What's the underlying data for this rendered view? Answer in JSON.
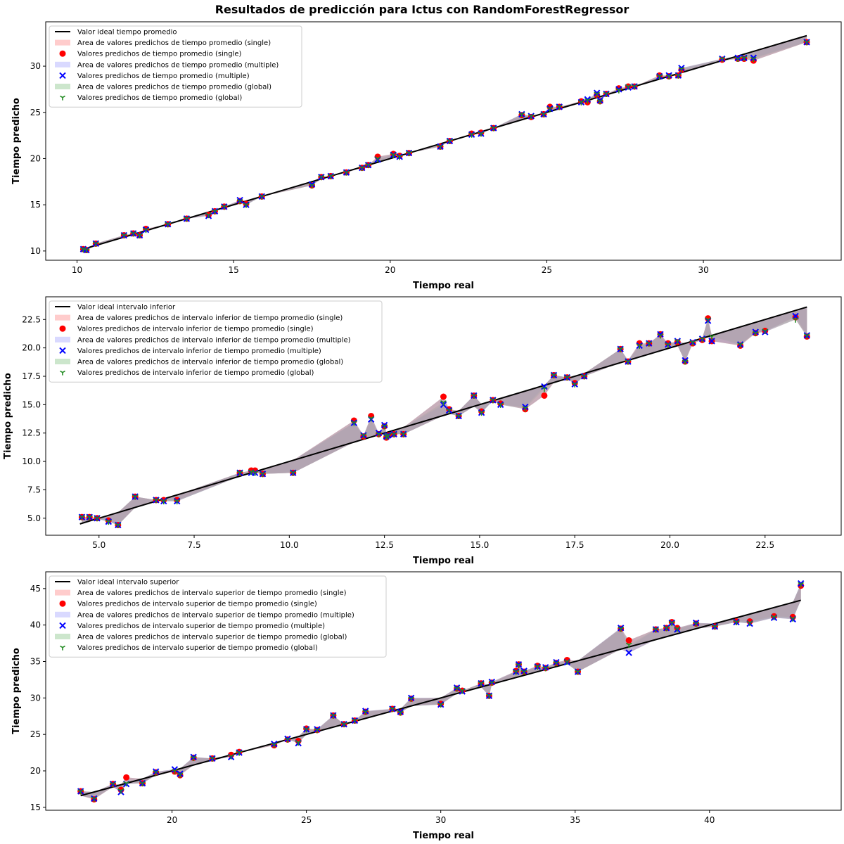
{
  "figure_title": "Resultados de predicción para Ictus con RandomForestRegressor",
  "colors": {
    "ideal": "#000000",
    "single": "#ff0000",
    "multiple": "#0000ff",
    "global": "#228b22",
    "band_single": "rgba(255,0,0,0.2)",
    "band_multiple": "rgba(0,0,255,0.15)",
    "band_global": "rgba(0,128,0,0.2)",
    "band_overlap": "#b5a5b5"
  },
  "chart_data": [
    {
      "type": "scatter",
      "xlabel": "Tiempo real",
      "ylabel": "Tiempo predicho",
      "xlim": [
        9.0,
        34.4
      ],
      "ylim": [
        9.0,
        34.8
      ],
      "xticks": [
        10,
        15,
        20,
        25,
        30
      ],
      "yticks": [
        10,
        15,
        20,
        25,
        30
      ],
      "ytick_format": 0,
      "legend_position": "upper left",
      "legend": [
        "Valor ideal tiempo promedio",
        "Area de valores predichos de tiempo promedio (single)",
        "Valores predichos de tiempo promedio (single)",
        "Area de valores predichos de tiempo promedio (multiple)",
        "Valores predichos de tiempo promedio (multiple)",
        "Area de valores predichos de tiempo promedio (global)",
        "Valores predichos de tiempo promedio (global)"
      ],
      "ideal_line": {
        "x": [
          10.2,
          33.3
        ],
        "y": [
          10.2,
          33.3
        ]
      },
      "x": [
        10.2,
        10.3,
        10.6,
        11.5,
        11.8,
        12.0,
        12.2,
        12.9,
        13.5,
        14.2,
        14.4,
        14.7,
        15.2,
        15.4,
        15.9,
        17.5,
        17.8,
        18.1,
        18.6,
        19.1,
        19.3,
        19.6,
        20.1,
        20.3,
        20.6,
        21.6,
        21.9,
        22.6,
        22.9,
        23.3,
        24.2,
        24.5,
        24.9,
        25.1,
        25.4,
        26.1,
        26.3,
        26.6,
        26.7,
        26.9,
        27.3,
        27.6,
        27.8,
        28.6,
        28.9,
        29.2,
        29.3,
        30.6,
        31.1,
        31.3,
        31.6,
        33.3
      ],
      "series": [
        {
          "name": "single",
          "values": [
            10.2,
            10.1,
            10.8,
            11.7,
            11.9,
            11.7,
            12.4,
            12.9,
            13.5,
            13.9,
            14.3,
            14.8,
            15.4,
            15.1,
            15.9,
            17.1,
            18.0,
            18.1,
            18.5,
            19.0,
            19.3,
            20.2,
            20.5,
            20.3,
            20.6,
            21.3,
            21.9,
            22.7,
            22.8,
            23.3,
            24.7,
            24.5,
            24.8,
            25.6,
            25.6,
            26.2,
            26.1,
            26.9,
            26.2,
            27.0,
            27.6,
            27.8,
            27.8,
            29.0,
            28.9,
            29.0,
            29.6,
            30.7,
            30.8,
            30.8,
            30.6,
            32.6
          ]
        },
        {
          "name": "multiple",
          "values": [
            10.2,
            10.1,
            10.8,
            11.7,
            11.9,
            11.7,
            12.3,
            12.9,
            13.5,
            13.8,
            14.3,
            14.8,
            15.5,
            15.0,
            15.9,
            17.2,
            18.0,
            18.1,
            18.5,
            19.0,
            19.3,
            19.9,
            20.4,
            20.2,
            20.6,
            21.3,
            21.9,
            22.6,
            22.7,
            23.3,
            24.8,
            24.6,
            24.8,
            25.4,
            25.6,
            26.1,
            26.4,
            27.1,
            26.3,
            27.0,
            27.5,
            27.7,
            27.8,
            28.9,
            29.0,
            29.0,
            29.8,
            30.8,
            30.9,
            30.9,
            30.9,
            32.6
          ]
        },
        {
          "name": "global",
          "values": [
            10.2,
            10.1,
            10.8,
            11.7,
            11.9,
            11.7,
            12.3,
            12.9,
            13.5,
            13.9,
            14.3,
            14.8,
            15.4,
            15.0,
            15.9,
            17.1,
            18.0,
            18.1,
            18.5,
            19.0,
            19.3,
            20.0,
            20.4,
            20.2,
            20.6,
            21.3,
            21.9,
            22.6,
            22.7,
            23.3,
            24.8,
            24.6,
            24.8,
            25.4,
            25.6,
            26.1,
            26.3,
            27.0,
            26.2,
            27.0,
            27.4,
            27.8,
            27.8,
            28.9,
            28.9,
            29.0,
            29.7,
            30.8,
            30.8,
            30.9,
            30.8,
            32.6
          ]
        }
      ]
    },
    {
      "type": "scatter",
      "xlabel": "Tiempo real",
      "ylabel": "Tiempo predicho",
      "xlim": [
        3.6,
        24.5
      ],
      "ylim": [
        3.5,
        24.5
      ],
      "xticks": [
        5.0,
        7.5,
        10.0,
        12.5,
        15.0,
        17.5,
        20.0,
        22.5
      ],
      "yticks": [
        5.0,
        7.5,
        10.0,
        12.5,
        15.0,
        17.5,
        20.0,
        22.5
      ],
      "ytick_format": 1,
      "legend_position": "upper left",
      "legend": [
        "Valor ideal intervalo inferior",
        "Area de valores predichos de intervalo inferior de tiempo promedio (single)",
        "Valores predichos de intervalo inferior de tiempo promedio (single)",
        "Area de valores predichos de intervalo inferior de tiempo promedio (multiple)",
        "Valores predichos de intervalo inferior de tiempo promedio (multiple)",
        "Area de valores predichos de intervalo inferior de tiempo promedio (global)",
        "Valores predichos de intervalo inferior de tiempo promedio (global)"
      ],
      "ideal_line": {
        "x": [
          4.5,
          23.6
        ],
        "y": [
          4.5,
          23.6
        ]
      },
      "x": [
        4.55,
        4.75,
        4.95,
        5.25,
        5.5,
        5.95,
        6.5,
        6.7,
        7.05,
        8.7,
        9.0,
        9.1,
        9.3,
        10.1,
        11.7,
        11.95,
        12.15,
        12.35,
        12.5,
        12.55,
        12.6,
        12.75,
        13.0,
        14.05,
        14.2,
        14.45,
        14.85,
        15.05,
        15.35,
        15.55,
        16.2,
        16.7,
        16.95,
        17.3,
        17.5,
        17.75,
        18.7,
        18.9,
        19.2,
        19.45,
        19.75,
        19.95,
        20.2,
        20.4,
        20.6,
        20.85,
        21.0,
        21.1,
        21.85,
        22.25,
        22.5,
        23.3,
        23.6
      ],
      "series": [
        {
          "name": "single",
          "values": [
            5.1,
            5.1,
            5.0,
            4.8,
            4.4,
            6.9,
            6.6,
            6.6,
            6.6,
            9.0,
            9.2,
            9.2,
            8.9,
            9.0,
            13.6,
            12.2,
            14.0,
            12.4,
            13.1,
            12.1,
            12.3,
            12.4,
            12.4,
            15.7,
            14.6,
            14.0,
            15.8,
            14.4,
            15.4,
            15.1,
            14.6,
            15.8,
            17.6,
            17.4,
            16.9,
            17.5,
            19.9,
            18.8,
            20.4,
            20.4,
            21.2,
            20.4,
            20.5,
            18.8,
            20.4,
            20.7,
            22.6,
            20.6,
            20.2,
            21.3,
            21.5,
            22.7,
            21.0
          ]
        },
        {
          "name": "multiple",
          "values": [
            5.1,
            5.1,
            5.0,
            4.7,
            4.4,
            6.9,
            6.6,
            6.5,
            6.5,
            9.0,
            9.0,
            9.0,
            8.9,
            9.0,
            13.4,
            12.3,
            13.7,
            12.5,
            13.2,
            12.2,
            12.3,
            12.4,
            12.4,
            15.0,
            14.5,
            14.0,
            15.8,
            14.3,
            15.4,
            15.0,
            14.8,
            16.6,
            17.6,
            17.4,
            16.8,
            17.5,
            19.9,
            18.8,
            20.2,
            20.4,
            21.2,
            20.3,
            20.6,
            18.9,
            20.5,
            20.8,
            22.4,
            20.6,
            20.3,
            21.4,
            21.4,
            22.8,
            21.1
          ]
        },
        {
          "name": "global",
          "values": [
            5.1,
            5.1,
            5.0,
            4.7,
            4.4,
            6.9,
            6.6,
            6.5,
            6.5,
            9.0,
            9.1,
            9.0,
            8.9,
            9.0,
            13.4,
            12.3,
            13.8,
            12.4,
            13.1,
            12.2,
            12.3,
            12.4,
            12.4,
            15.2,
            14.5,
            14.0,
            15.8,
            14.3,
            15.4,
            15.0,
            14.7,
            16.4,
            17.6,
            17.4,
            16.8,
            17.5,
            19.9,
            18.8,
            20.2,
            20.4,
            21.1,
            20.3,
            20.6,
            18.8,
            20.5,
            20.8,
            22.5,
            21.0,
            20.3,
            21.3,
            21.5,
            22.5,
            21.1
          ]
        }
      ]
    },
    {
      "type": "scatter",
      "xlabel": "Tiempo real",
      "ylabel": "Tiempo predicho",
      "xlim": [
        15.3,
        44.9
      ],
      "ylim": [
        14.6,
        47.3
      ],
      "xticks": [
        20,
        25,
        30,
        35,
        40
      ],
      "yticks": [
        15,
        20,
        25,
        30,
        35,
        40,
        45
      ],
      "ytick_format": 0,
      "legend_position": "upper left",
      "legend": [
        "Valor ideal intervalo superior",
        "Area de valores predichos de intervalo superior de tiempo promedio (single)",
        "Valores predichos de intervalo superior de tiempo promedio (single)",
        "Area de valores predichos de intervalo superior de tiempo promedio (multiple)",
        "Valores predichos de intervalo superior de tiempo promedio (multiple)",
        "Area de valores predichos de intervalo superior de tiempo promedio (global)",
        "Valores predichos de intervalo superior de tiempo promedio (global)"
      ],
      "ideal_line": {
        "x": [
          16.6,
          43.4
        ],
        "y": [
          16.6,
          43.4
        ]
      },
      "x": [
        16.6,
        17.1,
        17.8,
        18.1,
        18.3,
        18.9,
        19.4,
        20.1,
        20.3,
        20.8,
        21.5,
        22.2,
        22.5,
        23.8,
        24.3,
        24.7,
        25.0,
        25.4,
        26.0,
        26.4,
        26.8,
        27.2,
        28.2,
        28.5,
        28.9,
        30.0,
        30.6,
        30.8,
        31.5,
        31.8,
        31.9,
        32.8,
        32.9,
        33.1,
        33.6,
        33.9,
        34.3,
        34.7,
        35.1,
        36.7,
        37.0,
        38.0,
        38.4,
        38.6,
        38.8,
        39.5,
        40.2,
        41.0,
        41.5,
        42.4,
        43.1,
        43.4
      ],
      "series": [
        {
          "name": "single",
          "values": [
            17.2,
            16.1,
            18.2,
            17.4,
            19.1,
            18.3,
            19.8,
            19.9,
            19.4,
            21.8,
            21.7,
            22.2,
            22.6,
            23.5,
            24.3,
            24.1,
            25.8,
            25.6,
            27.6,
            26.4,
            26.9,
            28.1,
            28.5,
            28.0,
            29.9,
            29.2,
            31.3,
            31.0,
            32.0,
            30.3,
            32.1,
            33.7,
            34.6,
            33.6,
            34.4,
            34.1,
            34.8,
            35.2,
            33.6,
            39.5,
            37.9,
            39.4,
            39.6,
            40.4,
            39.6,
            40.2,
            39.8,
            40.5,
            40.5,
            41.2,
            41.1,
            45.4
          ]
        },
        {
          "name": "multiple",
          "values": [
            17.2,
            16.2,
            18.2,
            17.1,
            18.2,
            18.3,
            19.9,
            20.2,
            19.6,
            21.9,
            21.7,
            21.9,
            22.5,
            23.7,
            24.4,
            23.8,
            25.7,
            25.7,
            27.6,
            26.4,
            26.9,
            28.2,
            28.5,
            28.1,
            30.0,
            29.1,
            31.4,
            30.9,
            32.0,
            30.3,
            32.2,
            33.6,
            34.6,
            33.7,
            34.3,
            34.2,
            34.9,
            34.9,
            33.6,
            39.6,
            36.2,
            39.4,
            39.6,
            40.3,
            39.4,
            40.3,
            39.8,
            40.4,
            40.2,
            41.0,
            40.8,
            45.7
          ]
        },
        {
          "name": "global",
          "values": [
            17.2,
            16.2,
            18.2,
            17.3,
            18.3,
            18.3,
            19.8,
            20.0,
            19.5,
            21.8,
            21.7,
            22.0,
            22.5,
            23.6,
            24.3,
            23.9,
            25.7,
            25.6,
            27.6,
            26.4,
            26.9,
            28.1,
            28.5,
            28.0,
            29.9,
            29.1,
            31.3,
            31.0,
            32.0,
            30.3,
            32.1,
            33.6,
            34.5,
            33.6,
            34.3,
            34.1,
            34.8,
            35.0,
            33.6,
            39.5,
            37.3,
            39.4,
            39.6,
            40.3,
            39.5,
            40.2,
            39.8,
            40.4,
            40.3,
            41.1,
            40.9,
            45.6
          ]
        }
      ]
    }
  ]
}
